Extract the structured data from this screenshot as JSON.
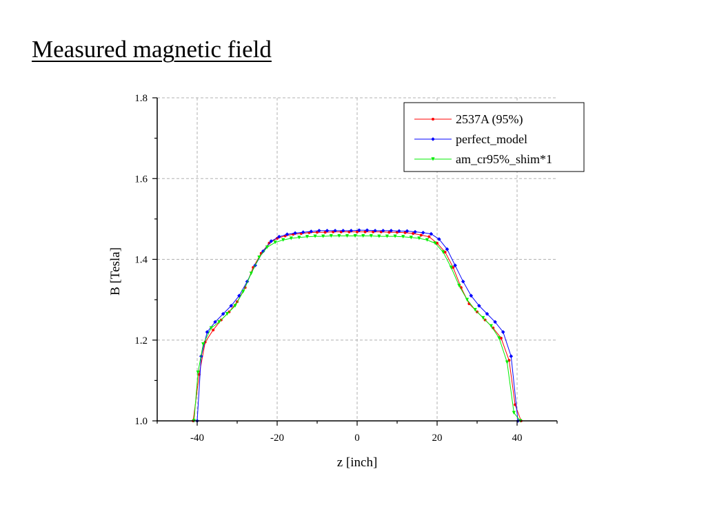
{
  "slide": {
    "title": "Measured magnetic field"
  },
  "chart_data": {
    "type": "line",
    "title": "",
    "xlabel": "z [inch]",
    "ylabel": "B [Tesla]",
    "xlim": [
      -50,
      50
    ],
    "ylim": [
      1.0,
      1.8
    ],
    "xticks": [
      "-40",
      "-20",
      "0",
      "20",
      "40"
    ],
    "xtick_values": [
      -40,
      -20,
      0,
      20,
      40
    ],
    "yticks": [
      "1.0",
      "1.2",
      "1.4",
      "1.6",
      "1.8"
    ],
    "ytick_values": [
      1.0,
      1.2,
      1.4,
      1.6,
      1.8
    ],
    "grid": true,
    "legend_position": "top-right",
    "series": [
      {
        "name": "2537A (95%)",
        "color": "#ff0000",
        "marker": "circle",
        "x": [
          -41,
          -39.5,
          -38,
          -36,
          -34,
          -32,
          -30,
          -28,
          -26,
          -24,
          -22,
          -20,
          -18,
          -16,
          -14,
          -12,
          -10,
          -8,
          -6,
          -4,
          -2,
          0,
          2,
          4,
          6,
          8,
          10,
          12,
          14,
          16,
          18,
          20,
          22,
          24,
          26,
          28,
          30,
          32,
          34,
          36,
          38,
          39.5,
          41
        ],
        "y": [
          1.0,
          1.115,
          1.195,
          1.225,
          1.25,
          1.27,
          1.295,
          1.33,
          1.38,
          1.415,
          1.44,
          1.452,
          1.458,
          1.462,
          1.464,
          1.466,
          1.467,
          1.467,
          1.468,
          1.468,
          1.468,
          1.468,
          1.468,
          1.468,
          1.468,
          1.467,
          1.467,
          1.466,
          1.464,
          1.46,
          1.456,
          1.44,
          1.418,
          1.38,
          1.33,
          1.29,
          1.27,
          1.25,
          1.23,
          1.205,
          1.15,
          1.04,
          1.0
        ]
      },
      {
        "name": "perfect_model",
        "color": "#0000ff",
        "marker": "diamond",
        "x": [
          -40,
          -39,
          -37.5,
          -35.5,
          -33.5,
          -31.5,
          -29.5,
          -27.5,
          -25.5,
          -23.5,
          -21.5,
          -19.5,
          -17.5,
          -15.5,
          -13.5,
          -11.5,
          -9.5,
          -7.5,
          -5.5,
          -3.5,
          -1.5,
          0.5,
          2.5,
          4.5,
          6.5,
          8.5,
          10.5,
          12.5,
          14.5,
          16.5,
          18.5,
          20.5,
          22.5,
          24.5,
          26.5,
          28.5,
          30.5,
          32.5,
          34.5,
          36.5,
          38.5,
          40.2
        ],
        "y": [
          1.0,
          1.16,
          1.22,
          1.245,
          1.265,
          1.285,
          1.31,
          1.345,
          1.385,
          1.42,
          1.445,
          1.456,
          1.462,
          1.465,
          1.467,
          1.469,
          1.471,
          1.471,
          1.471,
          1.471,
          1.471,
          1.472,
          1.472,
          1.471,
          1.471,
          1.471,
          1.47,
          1.47,
          1.468,
          1.466,
          1.463,
          1.45,
          1.425,
          1.385,
          1.345,
          1.31,
          1.285,
          1.265,
          1.245,
          1.22,
          1.16,
          1.0
        ]
      },
      {
        "name": "am_cr95%_shim*1",
        "color": "#00ee00",
        "marker": "triangle-down",
        "x": [
          -40.8,
          -39.8,
          -38.5,
          -36.5,
          -34.5,
          -32.5,
          -30.5,
          -28.5,
          -26.5,
          -24.5,
          -22.5,
          -20.5,
          -18.5,
          -16.5,
          -14.5,
          -12.5,
          -10.5,
          -8.5,
          -6.5,
          -4.5,
          -2.5,
          -0.5,
          1.5,
          3.5,
          5.5,
          7.5,
          9.5,
          11.5,
          13.5,
          15.5,
          17.5,
          19.5,
          21.5,
          23.5,
          25.5,
          27.5,
          29.5,
          31.5,
          33.5,
          35.5,
          37.5,
          39.2,
          40.8
        ],
        "y": [
          1.0,
          1.12,
          1.19,
          1.23,
          1.245,
          1.265,
          1.285,
          1.32,
          1.365,
          1.405,
          1.43,
          1.442,
          1.448,
          1.452,
          1.454,
          1.456,
          1.457,
          1.457,
          1.458,
          1.458,
          1.458,
          1.458,
          1.458,
          1.458,
          1.457,
          1.457,
          1.457,
          1.456,
          1.454,
          1.452,
          1.448,
          1.44,
          1.418,
          1.38,
          1.335,
          1.3,
          1.275,
          1.255,
          1.235,
          1.205,
          1.145,
          1.02,
          1.0
        ]
      }
    ]
  }
}
